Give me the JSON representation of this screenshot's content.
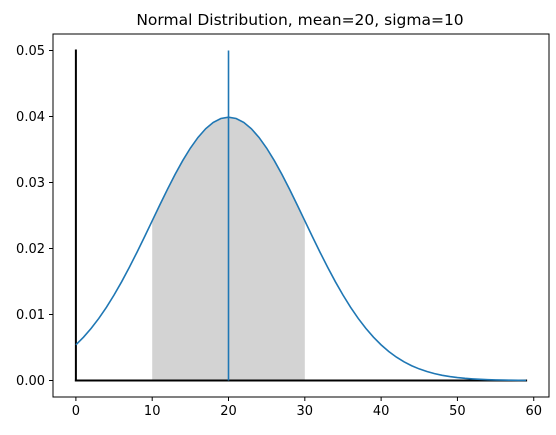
{
  "chart_data": {
    "type": "line",
    "title": "Normal Distribution, mean=20, sigma=10",
    "xlabel": "",
    "ylabel": "",
    "mean": 20,
    "sigma": 10,
    "xlim": [
      -3,
      62
    ],
    "ylim": [
      -0.0025,
      0.0525
    ],
    "x_ticks": [
      0,
      10,
      20,
      30,
      40,
      50,
      60
    ],
    "y_ticks": [
      0.0,
      0.01,
      0.02,
      0.03,
      0.04,
      0.05
    ],
    "y_tick_format": 2,
    "curve": {
      "x_start": 0,
      "x_end": 59,
      "step": 1,
      "color": "#1f77b4"
    },
    "shaded_region": {
      "x_start": 10,
      "x_end": 30,
      "color": "#d3d3d3"
    },
    "mean_line": {
      "x": 20,
      "y_start": 0,
      "y_end": 0.05,
      "color": "#1f77b4"
    },
    "axis_lines": [
      {
        "x1": 0,
        "y1": 0,
        "x2": 0,
        "y2": 0.05,
        "color": "#000000"
      },
      {
        "x1": 0,
        "y1": 0,
        "x2": 59,
        "y2": 0,
        "color": "#000000"
      }
    ],
    "grid": false,
    "legend": "none"
  }
}
